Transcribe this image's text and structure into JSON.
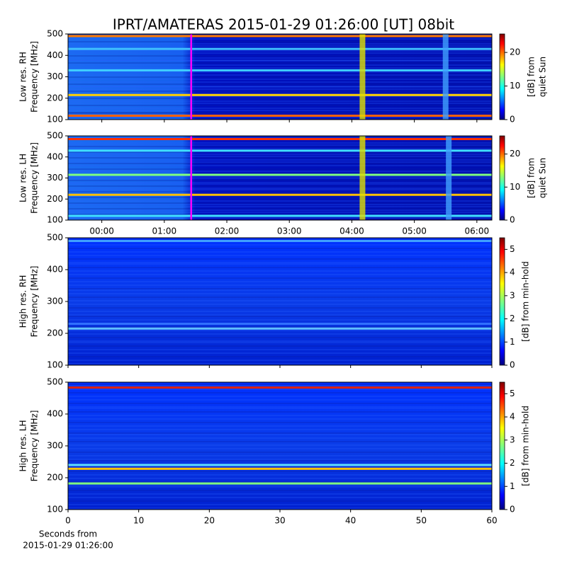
{
  "title": "IPRT/AMATERAS 2015-01-29 01:26:00 [UT]   08bit",
  "chart_data": [
    {
      "type": "heatmap",
      "ylabel": [
        "Low res. RH",
        "Frequency [MHz]"
      ],
      "xlim": [
        -0.54,
        6.24
      ],
      "xticks": [
        0,
        1,
        2,
        3,
        4,
        5,
        6
      ],
      "xticklabels": false,
      "ylim": [
        100,
        500
      ],
      "yticks": [
        100,
        200,
        300,
        400,
        500
      ],
      "clim": [
        0,
        25.5
      ],
      "cticks": [
        0,
        10,
        20
      ],
      "clabel": [
        "[dB] from",
        "quiet Sun"
      ],
      "marker_x": 1.43,
      "marker_color": "#ff00ff",
      "hlines": [
        {
          "y": 490,
          "color": "#ff7a00"
        },
        {
          "y": 430,
          "color": "#40c0ff"
        },
        {
          "y": 330,
          "color": "#40d0ff"
        },
        {
          "y": 215,
          "color": "#ffd000"
        },
        {
          "y": 118,
          "color": "#ff6000"
        }
      ],
      "vlines": [
        {
          "x": 4.17,
          "color": "#e0e000"
        },
        {
          "x": 5.5,
          "color": "#40a0ff"
        }
      ]
    },
    {
      "type": "heatmap",
      "ylabel": [
        "Low res. LH",
        "Frequency [MHz]"
      ],
      "xlim": [
        -0.54,
        6.24
      ],
      "xticks": [
        {
          "value": 0,
          "label": "00:00"
        },
        {
          "value": 1,
          "label": "01:00"
        },
        {
          "value": 2,
          "label": "02:00"
        },
        {
          "value": 3,
          "label": "03:00"
        },
        {
          "value": 4,
          "label": "04:00"
        },
        {
          "value": 5,
          "label": "05:00"
        },
        {
          "value": 6,
          "label": "06:00"
        }
      ],
      "ylim": [
        100,
        500
      ],
      "yticks": [
        100,
        200,
        300,
        400,
        500
      ],
      "clim": [
        0,
        25.5
      ],
      "cticks": [
        0,
        10,
        20
      ],
      "clabel": [
        "[dB] from",
        "quiet Sun"
      ],
      "marker_x": 1.43,
      "marker_color": "#ff00ff",
      "hlines": [
        {
          "y": 485,
          "color": "#ff3000"
        },
        {
          "y": 430,
          "color": "#40e0ff"
        },
        {
          "y": 315,
          "color": "#80ff80"
        },
        {
          "y": 220,
          "color": "#ffc000"
        },
        {
          "y": 120,
          "color": "#40e0ff"
        }
      ],
      "vlines": [
        {
          "x": 4.17,
          "color": "#e0e000"
        },
        {
          "x": 5.55,
          "color": "#40a0ff"
        }
      ]
    },
    {
      "type": "heatmap",
      "ylabel": [
        "High res. RH",
        "Frequency [MHz]"
      ],
      "xlim": [
        0,
        60
      ],
      "xticks": [
        0,
        10,
        20,
        30,
        40,
        50,
        60
      ],
      "xticklabels": false,
      "ylim": [
        100,
        500
      ],
      "yticks": [
        100,
        200,
        300,
        400,
        500
      ],
      "clim": [
        0,
        5.5
      ],
      "cticks": [
        0,
        1,
        2,
        3,
        4,
        5
      ],
      "clabel": [
        "[dB] from min-hold"
      ],
      "hlines": [
        {
          "y": 490,
          "color": "#40a0ff"
        },
        {
          "y": 230,
          "color": "#3070ff"
        },
        {
          "y": 215,
          "color": "#60c0ff"
        }
      ],
      "vlines": []
    },
    {
      "type": "heatmap",
      "ylabel": [
        "High res. LH",
        "Frequency [MHz]"
      ],
      "xlim": [
        0,
        60
      ],
      "xticks": [
        0,
        10,
        20,
        30,
        40,
        50,
        60
      ],
      "ylim": [
        100,
        500
      ],
      "yticks": [
        100,
        200,
        300,
        400,
        500
      ],
      "clim": [
        0,
        5.5
      ],
      "cticks": [
        0,
        1,
        2,
        3,
        4,
        5
      ],
      "clabel": [
        "[dB] from min-hold"
      ],
      "xlabel": [
        "Seconds from",
        "2015-01-29 01:26:00"
      ],
      "hlines": [
        {
          "y": 483,
          "color": "#e02000"
        },
        {
          "y": 240,
          "color": "#60e0ff"
        },
        {
          "y": 228,
          "color": "#ffc000"
        },
        {
          "y": 182,
          "color": "#80ff80"
        }
      ],
      "vlines": []
    }
  ]
}
